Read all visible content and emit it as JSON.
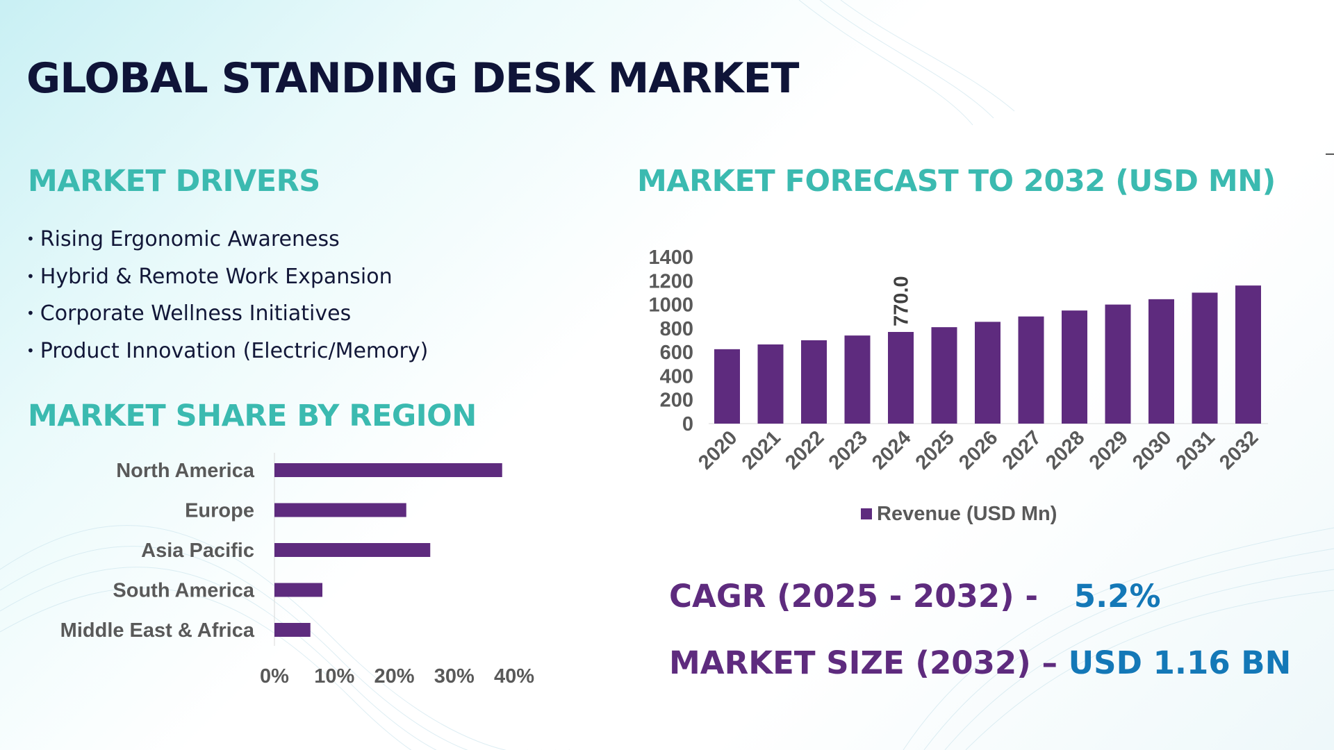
{
  "title": "GLOBAL STANDING DESK MARKET",
  "drivers": {
    "title": "MARKET DRIVERS",
    "items": [
      "Rising Ergonomic Awareness",
      "Hybrid & Remote Work Expansion",
      "Corporate Wellness Initiatives",
      "Product Innovation (Electric/Memory)"
    ]
  },
  "region": {
    "title": "MARKET SHARE BY REGION"
  },
  "forecast": {
    "title": "MARKET FORECAST TO 2032 (USD MN)"
  },
  "stats": {
    "cagr_label": "CAGR (2025 - 2032) -",
    "cagr_value": "5.2%",
    "size_label": "MARKET SIZE (2032) –",
    "size_value": "USD 1.16 BN"
  },
  "colors": {
    "bar": "#5e2b7e",
    "heading": "#3bbab0",
    "title": "#0f1438",
    "value": "#1478b7"
  },
  "chart_data": [
    {
      "type": "bar",
      "orientation": "horizontal",
      "categories": [
        "North America",
        "Europe",
        "Asia Pacific",
        "South America",
        "Middle East & Africa"
      ],
      "values": [
        38,
        22,
        26,
        8,
        6
      ],
      "xlim": [
        0,
        40
      ],
      "xticks": [
        "0%",
        "10%",
        "20%",
        "30%",
        "40%"
      ],
      "grid": false,
      "legend": "none"
    },
    {
      "type": "bar",
      "categories": [
        "2020",
        "2021",
        "2022",
        "2023",
        "2024",
        "2025",
        "2026",
        "2027",
        "2028",
        "2029",
        "2030",
        "2031",
        "2032"
      ],
      "series": [
        {
          "name": "Revenue (USD Mn)",
          "values": [
            625,
            665,
            700,
            740,
            770,
            810,
            855,
            900,
            950,
            1000,
            1045,
            1100,
            1160
          ]
        }
      ],
      "data_labels": [
        {
          "category": "2024",
          "text": "770.0"
        }
      ],
      "ylim": [
        0,
        1400
      ],
      "yticks": [
        "0",
        "200",
        "400",
        "600",
        "800",
        "1000",
        "1200",
        "1400"
      ],
      "grid": false,
      "legend": "bottom"
    }
  ]
}
